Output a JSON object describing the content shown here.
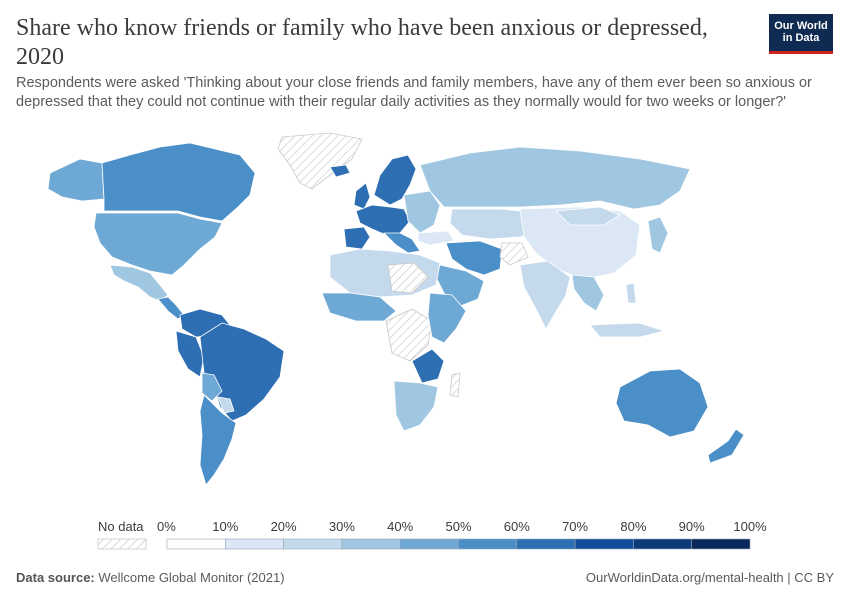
{
  "header": {
    "title": "Share who know friends or family who have been anxious or depressed, 2020",
    "subtitle": "Respondents were asked 'Thinking about your close friends and family members, have any of them ever been so anxious or depressed that they could not continue with their regular daily activities as they normally would for two weeks or longer?'",
    "logo_line1": "Our World",
    "logo_line2": "in Data"
  },
  "legend": {
    "no_data_label": "No data",
    "ticks": [
      "0%",
      "10%",
      "20%",
      "30%",
      "40%",
      "50%",
      "60%",
      "70%",
      "80%",
      "90%",
      "100%"
    ],
    "colors": [
      "#ffffff",
      "#dbe7f4",
      "#c5d9ed",
      "#a0c7e1",
      "#6ea8d5",
      "#4b8fc8",
      "#2e6fb4",
      "#124f9b",
      "#0c3a7a",
      "#08285b"
    ]
  },
  "footer": {
    "source_label": "Data source:",
    "source_value": "Wellcome Global Monitor (2021)",
    "url": "OurWorldinData.org/mental-health | CC BY"
  },
  "map_colors": {
    "no_data_stroke": "#c9c9c9",
    "border": "#ffffff"
  }
}
